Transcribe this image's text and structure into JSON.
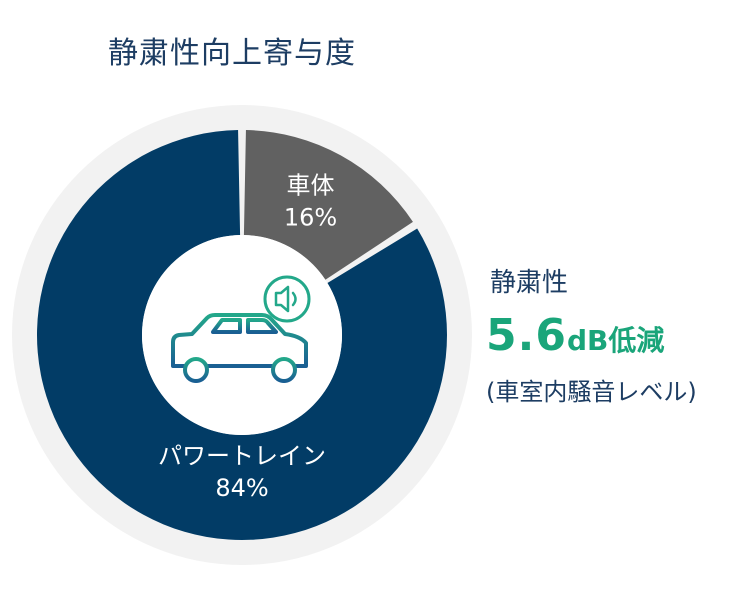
{
  "title": "静粛性向上寄与度",
  "chart_data": {
    "type": "pie",
    "variant": "donut",
    "slices": [
      {
        "label": "パワートレイン",
        "value": 84,
        "value_text": "84%",
        "color": "#023c66"
      },
      {
        "label": "車体",
        "value": 16,
        "value_text": "16%",
        "color": "#616161"
      }
    ]
  },
  "effect": {
    "label": "静粛性",
    "number": "5.6",
    "unit": "dB低減",
    "note": "(車室内騒音レベル)"
  },
  "colors": {
    "title": "#1d3d63",
    "accent_green": "#1aa57a",
    "halo": "#f2f2f2",
    "car_icon_top": "#23a88a",
    "car_icon_bottom": "#1a5f93"
  },
  "icons": [
    "car-icon",
    "speaker-icon"
  ]
}
